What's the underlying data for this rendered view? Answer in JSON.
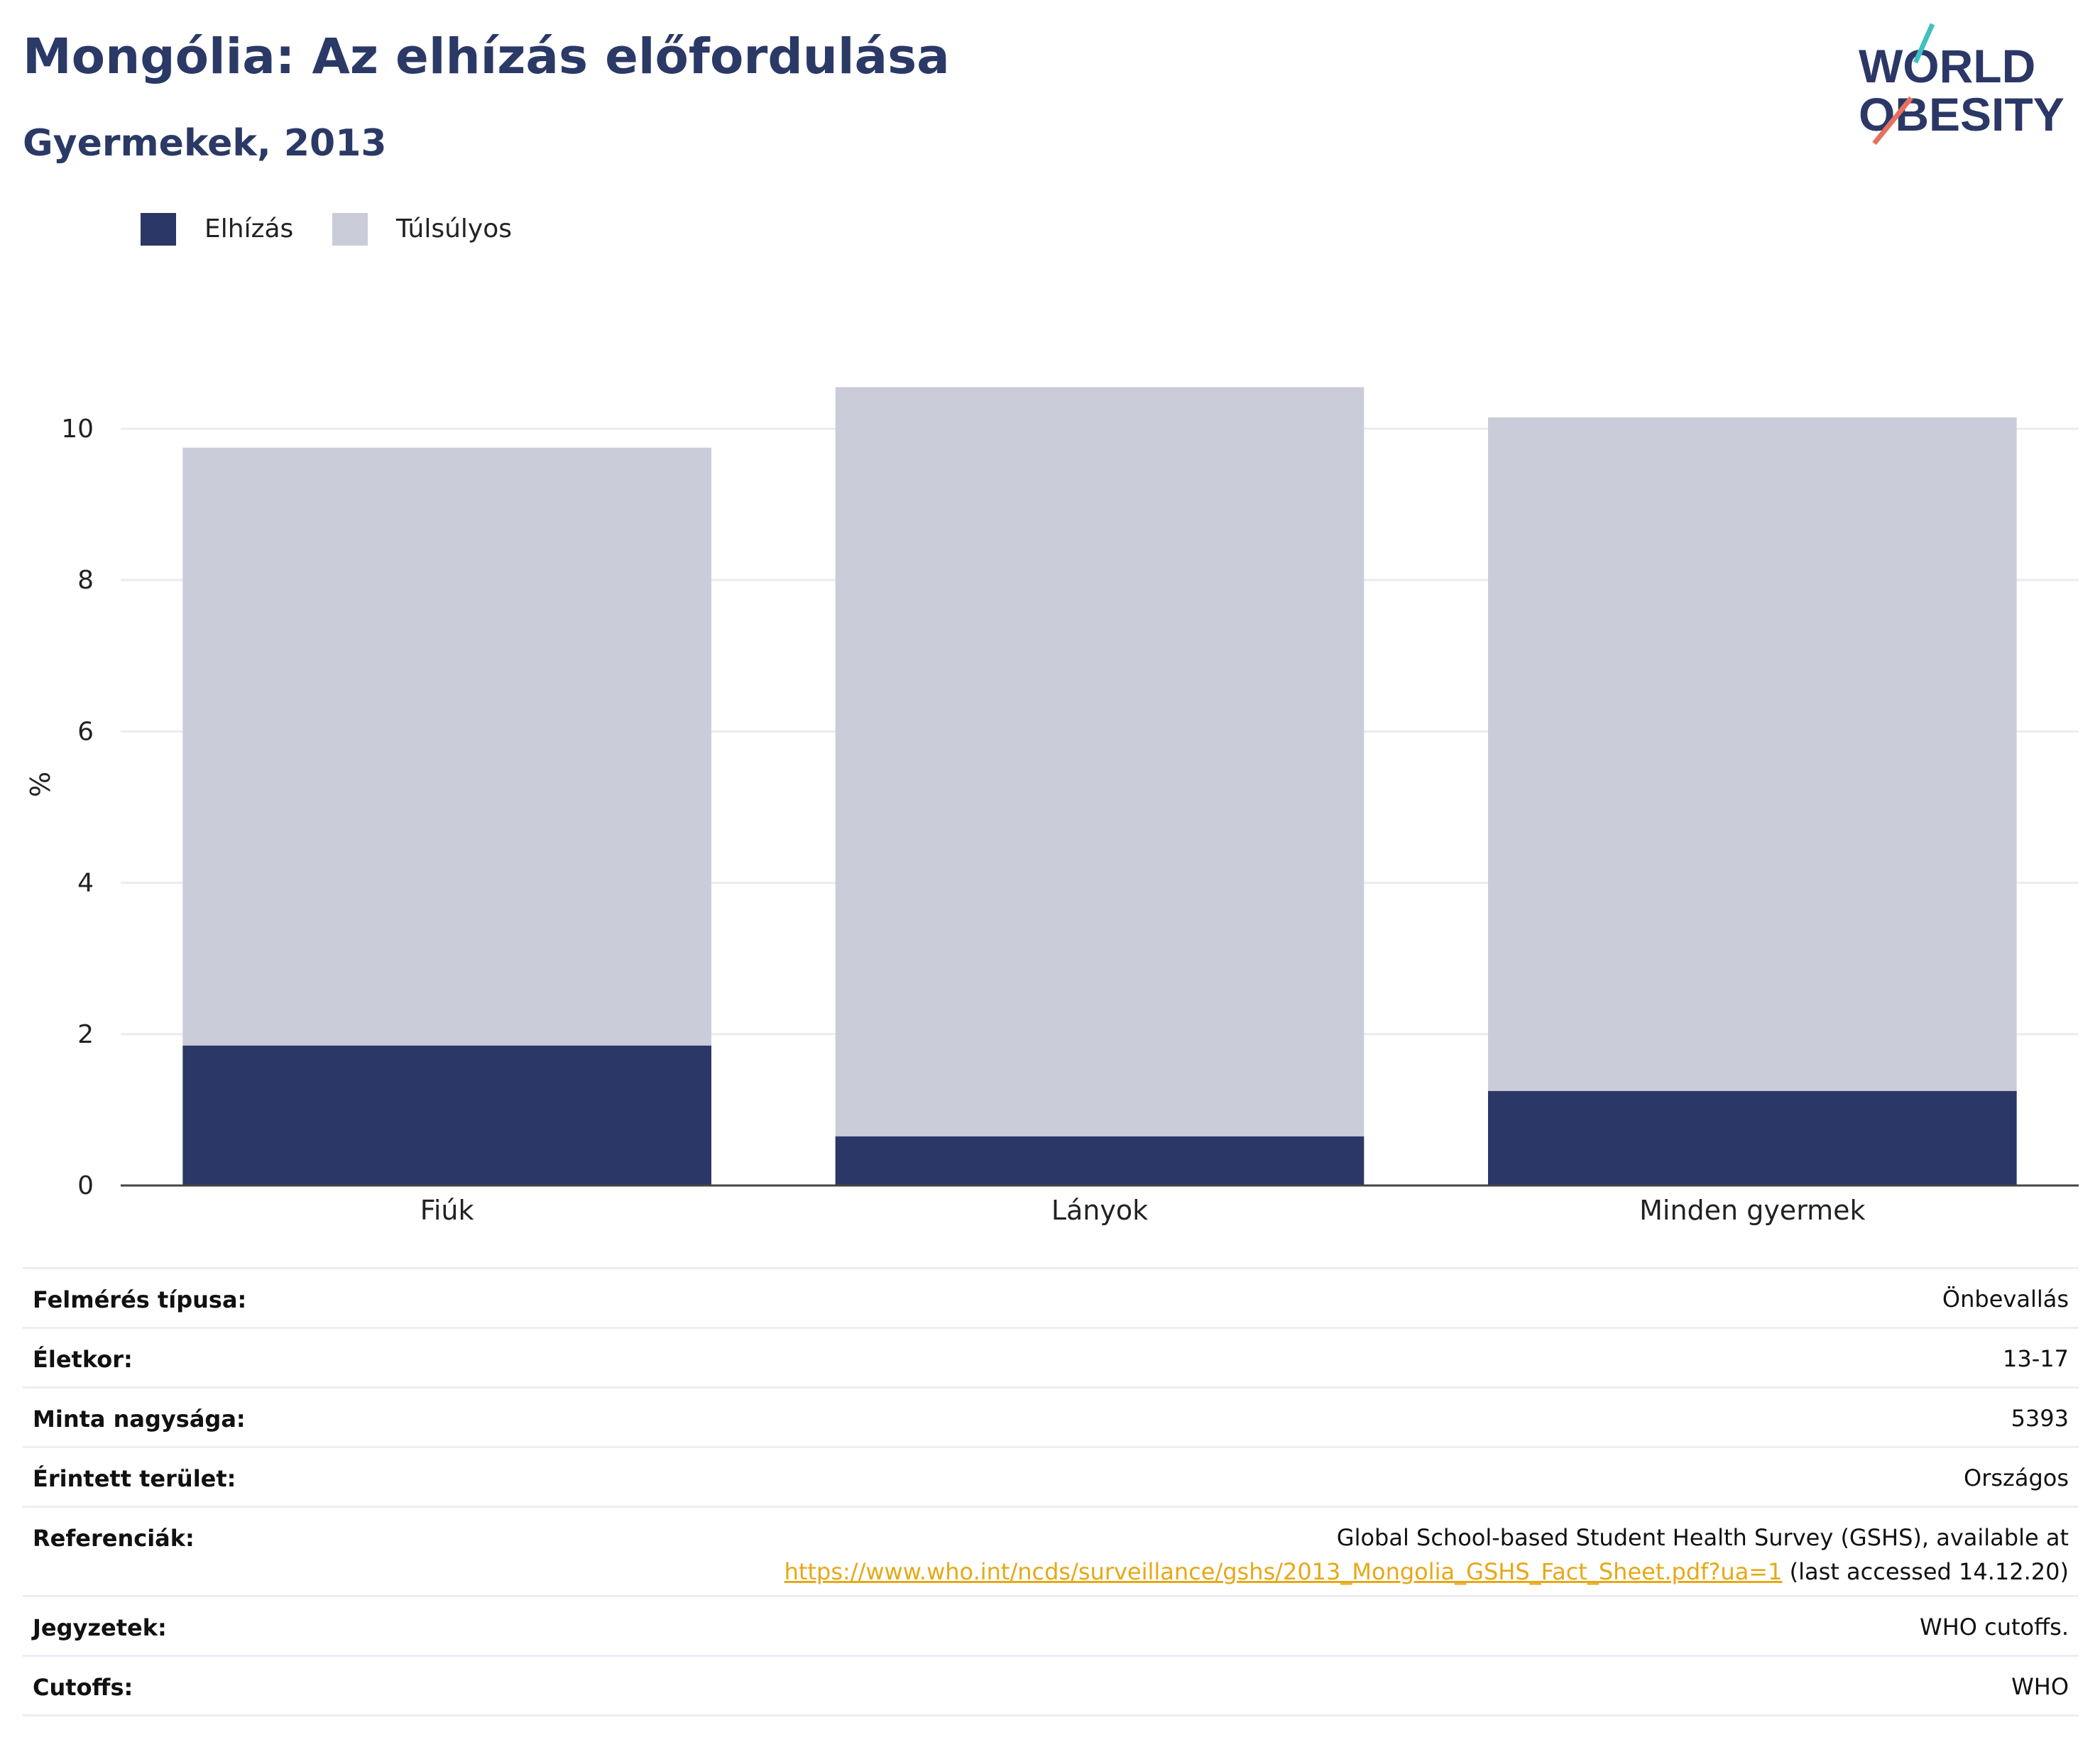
{
  "header": {
    "title": "Mongólia: Az elhízás előfordulása",
    "subtitle": "Gyermekek, 2013"
  },
  "logo": {
    "line1": "WORLD",
    "line2": "OBESITY"
  },
  "legend": [
    {
      "label": "Elhízás",
      "color": "#2b3766"
    },
    {
      "label": "Túlsúlyos",
      "color": "#cacdd9"
    }
  ],
  "chart_data": {
    "type": "bar",
    "stacked": true,
    "categories": [
      "Fiúk",
      "Lányok",
      "Minden gyermek"
    ],
    "series": [
      {
        "name": "Elhízás",
        "values": [
          1.85,
          0.65,
          1.25
        ],
        "color": "#2b3766"
      },
      {
        "name": "Túlsúlyos",
        "values": [
          7.9,
          9.9,
          8.9
        ],
        "color": "#cacdd9"
      }
    ],
    "ylabel": "%",
    "ylim": [
      0,
      10.6
    ],
    "yticks": [
      0,
      2,
      4,
      6,
      8,
      10
    ],
    "grid": true,
    "legend_position": "top-left"
  },
  "details": [
    {
      "label": "Felmérés típusa:",
      "value": "Önbevallás"
    },
    {
      "label": "Életkor:",
      "value": "13-17"
    },
    {
      "label": "Minta nagysága:",
      "value": "5393"
    },
    {
      "label": "Érintett terület:",
      "value": "Országos"
    },
    {
      "label": "Referenciák:",
      "value_line1": "Global School-based Student Health Survey (GSHS), available at",
      "link": "https://www.who.int/ncds/surveillance/gshs/2013_Mongolia_GSHS_Fact_Sheet.pdf?ua=1",
      "value_suffix": " (last accessed 14.12.20)"
    },
    {
      "label": "Jegyzetek:",
      "value": "WHO cutoffs."
    },
    {
      "label": "Cutoffs:",
      "value": "WHO"
    }
  ]
}
